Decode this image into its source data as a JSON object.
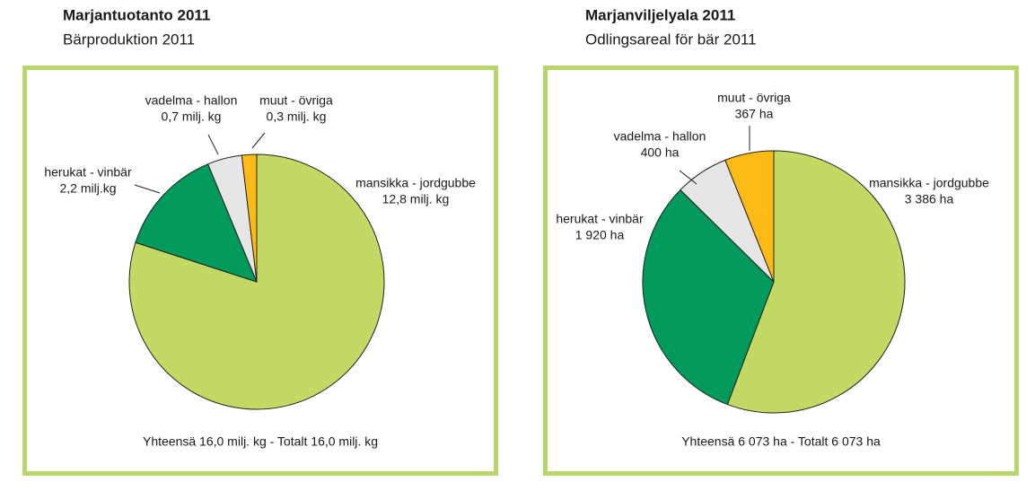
{
  "chart_data": [
    {
      "type": "pie",
      "title": "Marjantuotanto 2011",
      "subtitle": "Bärproduktion 2011",
      "categories": [
        "mansikka - jordgubbe",
        "herukat - vinbär",
        "vadelma - hallon",
        "muut - övriga"
      ],
      "values": [
        12.8,
        2.2,
        0.7,
        0.3
      ],
      "value_labels": [
        "12,8 milj. kg",
        "2,2 milj.kg",
        "0,7 milj. kg",
        "0,3 milj. kg"
      ],
      "colors": [
        "#c2da64",
        "#009a5c",
        "#e6e6e6",
        "#fbbb14"
      ],
      "annotation": "Yhteensä 16,0 milj. kg - Totalt 16,0 milj. kg"
    },
    {
      "type": "pie",
      "title": "Marjanviljelyala 2011",
      "subtitle": "Odlingsareal för bär 2011",
      "categories": [
        "mansikka - jordgubbe",
        "herukat - vinbär",
        "vadelma - hallon",
        "muut - övriga"
      ],
      "values": [
        3386,
        1920,
        400,
        367
      ],
      "value_labels": [
        "3 386 ha",
        "1 920 ha",
        "400 ha",
        "367 ha"
      ],
      "colors": [
        "#c2da64",
        "#009a5c",
        "#e6e6e6",
        "#fbbb14"
      ],
      "annotation": "Yhteensä 6 073 ha - Totalt 6 073 ha"
    }
  ]
}
